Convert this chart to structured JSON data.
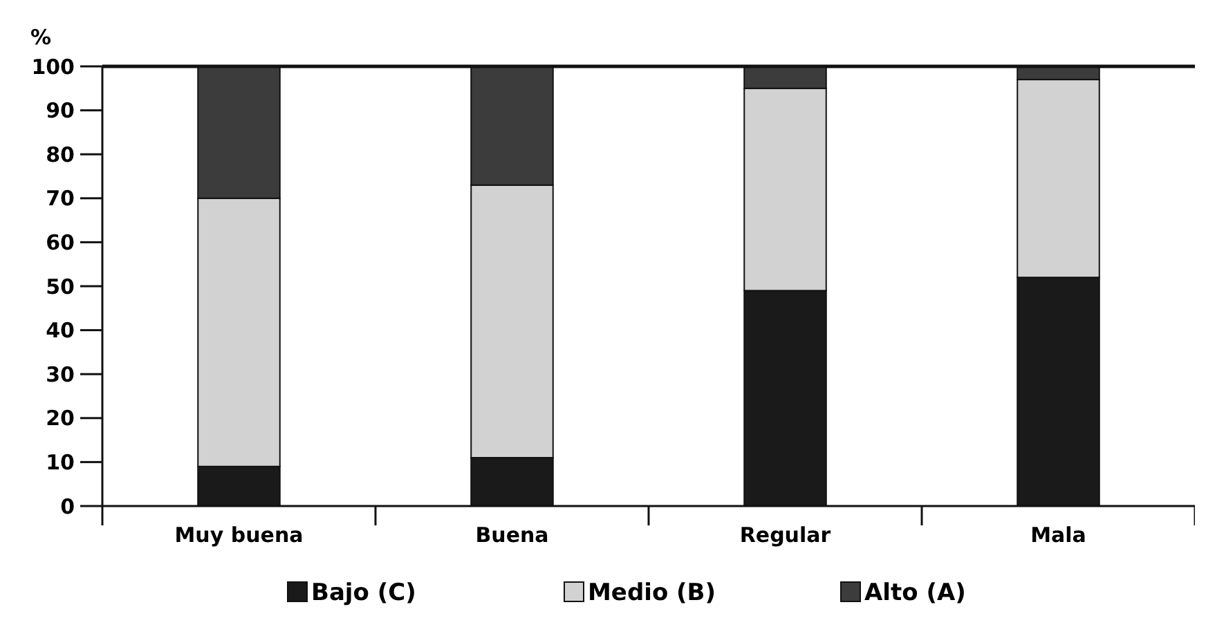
{
  "chart_data": {
    "type": "bar",
    "ylabel": "%",
    "categories": [
      "Muy buena",
      "Buena",
      "Regular",
      "Mala"
    ],
    "stacked": true,
    "series": [
      {
        "name": "Bajo (C)",
        "color": "#1a1a1a",
        "values": [
          9,
          11,
          49,
          52
        ]
      },
      {
        "name": "Medio (B)",
        "color": "#d2d2d2",
        "values": [
          61,
          62,
          46,
          45
        ]
      },
      {
        "name": "Alto (A)",
        "color": "#3c3c3c",
        "values": [
          30,
          27,
          5,
          3
        ]
      }
    ],
    "ylim": [
      0,
      100
    ],
    "yticks": [
      0,
      10,
      20,
      30,
      40,
      50,
      60,
      70,
      80,
      90,
      100
    ],
    "grid": false,
    "legend": "bottom"
  }
}
